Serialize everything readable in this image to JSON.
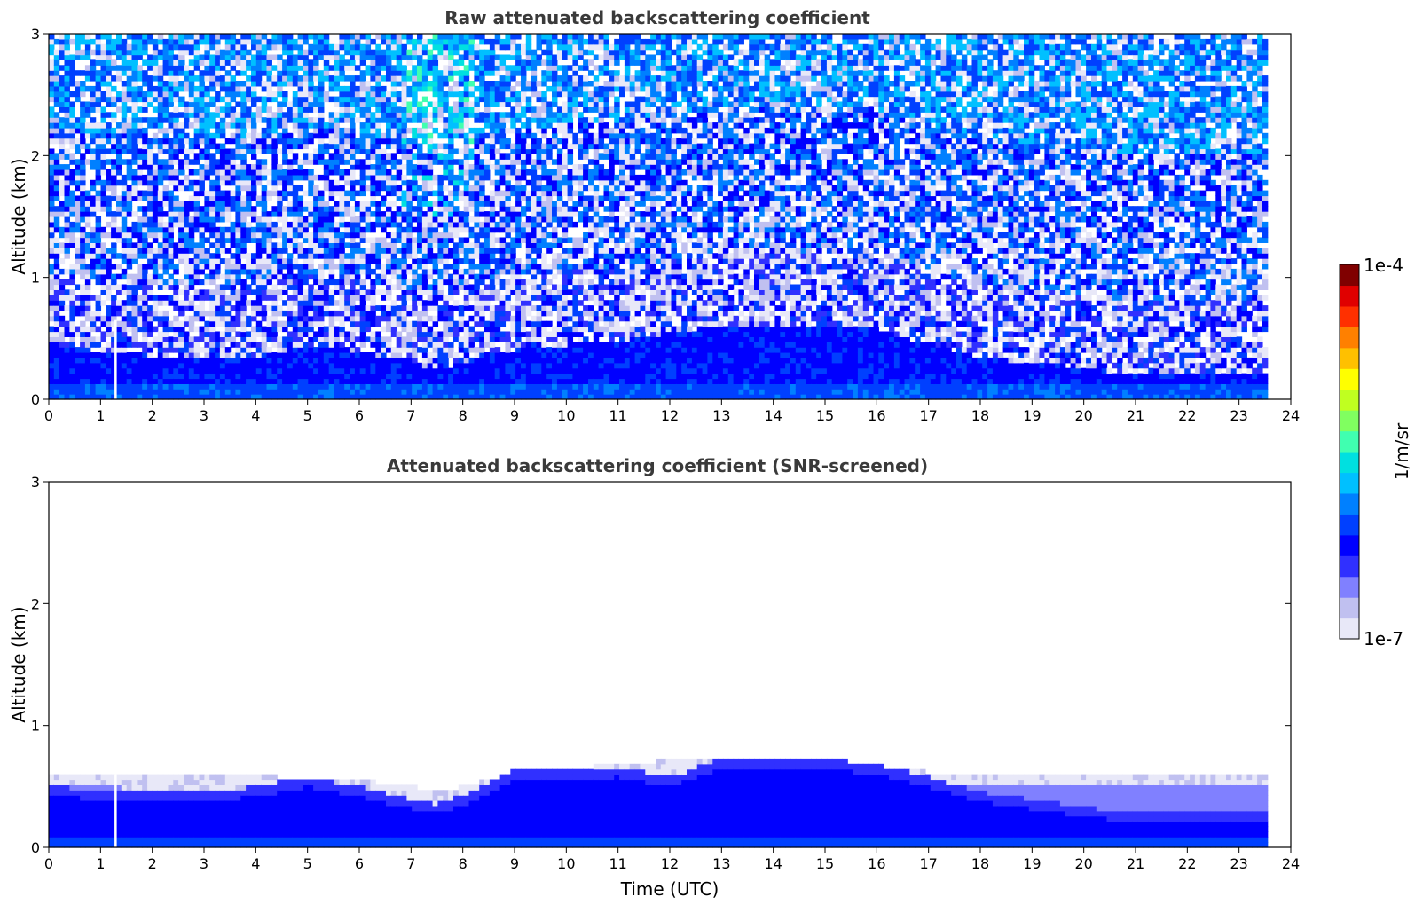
{
  "chart_data": [
    {
      "type": "heatmap",
      "title": "Raw attenuated backscattering coefficient",
      "xlabel": "",
      "ylabel": "Altitude (km)",
      "xlim": [
        0,
        24
      ],
      "ylim": [
        0,
        3
      ],
      "xticks": [
        "0",
        "1",
        "2",
        "3",
        "4",
        "5",
        "6",
        "7",
        "8",
        "9",
        "10",
        "11",
        "12",
        "13",
        "14",
        "15",
        "16",
        "17",
        "18",
        "19",
        "20",
        "21",
        "22",
        "23",
        "24"
      ],
      "yticks": [
        "0",
        "1",
        "2",
        "3"
      ],
      "data_end_time": 23.55,
      "gap_time": 1.27,
      "boundary_layer_top_km": {
        "time": [
          0,
          1,
          2,
          3,
          4,
          5,
          6,
          7,
          7.5,
          8,
          9,
          10,
          11,
          12,
          13,
          14,
          15,
          16,
          17,
          18,
          19,
          20,
          21,
          22,
          23,
          23.55
        ],
        "values": [
          0.42,
          0.4,
          0.36,
          0.33,
          0.35,
          0.45,
          0.4,
          0.3,
          0.25,
          0.3,
          0.4,
          0.45,
          0.48,
          0.55,
          0.6,
          0.62,
          0.62,
          0.58,
          0.45,
          0.35,
          0.3,
          0.25,
          0.22,
          0.2,
          0.2,
          0.2
        ]
      },
      "noise_enhancement": {
        "center_time": 7.5,
        "width": 0.7,
        "min_altitude_km": 1.5
      }
    },
    {
      "type": "heatmap",
      "title": "Attenuated backscattering coefficient (SNR-screened)",
      "xlabel": "Time (UTC)",
      "ylabel": "Altitude (km)",
      "xlim": [
        0,
        24
      ],
      "ylim": [
        0,
        3
      ],
      "xticks": [
        "0",
        "1",
        "2",
        "3",
        "4",
        "5",
        "6",
        "7",
        "8",
        "9",
        "10",
        "11",
        "12",
        "13",
        "14",
        "15",
        "16",
        "17",
        "18",
        "19",
        "20",
        "21",
        "22",
        "23",
        "24"
      ],
      "yticks": [
        "0",
        "1",
        "2",
        "3"
      ],
      "data_end_time": 23.55,
      "gap_time": 1.27,
      "screened_top_km": {
        "time": [
          0,
          1,
          2,
          3,
          4,
          5,
          6,
          7,
          7.5,
          8,
          9,
          10,
          11,
          12,
          13,
          14,
          15,
          16,
          17,
          18,
          19,
          20,
          21,
          22,
          23,
          23.55
        ],
        "values": [
          0.62,
          0.62,
          0.6,
          0.6,
          0.6,
          0.55,
          0.55,
          0.5,
          0.45,
          0.5,
          0.6,
          0.65,
          0.68,
          0.72,
          0.72,
          0.72,
          0.7,
          0.65,
          0.62,
          0.62,
          0.62,
          0.62,
          0.62,
          0.62,
          0.62,
          0.62
        ]
      },
      "boundary_layer_top_km": {
        "time": [
          0,
          1,
          2,
          3,
          4,
          5,
          6,
          7,
          7.5,
          8,
          9,
          10,
          11,
          12,
          13,
          14,
          15,
          16,
          17,
          18,
          19,
          20,
          21,
          22,
          23,
          23.55
        ],
        "values": [
          0.42,
          0.4,
          0.38,
          0.38,
          0.42,
          0.5,
          0.42,
          0.32,
          0.28,
          0.35,
          0.55,
          0.55,
          0.58,
          0.5,
          0.65,
          0.65,
          0.65,
          0.6,
          0.5,
          0.38,
          0.32,
          0.25,
          0.22,
          0.2,
          0.2,
          0.2
        ]
      }
    }
  ],
  "colorbar": {
    "label": "1/m/sr",
    "min_label": "1e-7",
    "max_label": "1e-4",
    "min": 1e-07,
    "max": 0.0001,
    "scale": "log",
    "colormap": [
      "#e8e8f8",
      "#c0c0f0",
      "#8080ff",
      "#3030ff",
      "#0000ff",
      "#0040ff",
      "#0080ff",
      "#00c0ff",
      "#00e0e0",
      "#40ffb0",
      "#80ff60",
      "#c0ff20",
      "#ffff00",
      "#ffc000",
      "#ff8000",
      "#ff3000",
      "#e00000",
      "#800000"
    ]
  }
}
